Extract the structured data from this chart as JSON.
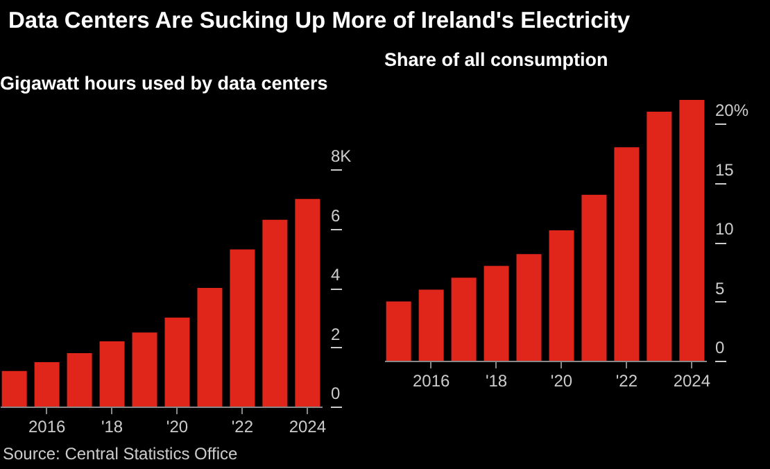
{
  "chart_data": [
    {
      "type": "bar",
      "title": "Data Centers Are Sucking Up More of Ireland's Electricity",
      "subtitle": "Gigawatt hours used by data centers",
      "categories": [
        null,
        "2016",
        null,
        "'18",
        null,
        "'20",
        null,
        "'22",
        null,
        "2024"
      ],
      "values": [
        1.2,
        1.5,
        1.8,
        2.2,
        2.5,
        3.0,
        4.0,
        5.3,
        6.3,
        7.0
      ],
      "color": "#e0251b",
      "ylim": [
        0,
        8
      ],
      "yticks": [
        0,
        2,
        4,
        6,
        {
          "value": 8,
          "label": "8K"
        }
      ],
      "annotations": [
        "Source: Central Statistics Office"
      ]
    },
    {
      "type": "bar",
      "subtitle": "Share of all consumption",
      "categories": [
        null,
        "2016",
        null,
        "'18",
        null,
        "'20",
        null,
        "'22",
        null,
        "2024"
      ],
      "values": [
        5.0,
        6.0,
        7.0,
        8.0,
        9.0,
        11.0,
        14.0,
        18.0,
        21.0,
        22.0
      ],
      "color": "#e0251b",
      "ylim": [
        0,
        22
      ],
      "yticks": [
        0,
        5,
        10,
        15,
        {
          "value": 20,
          "label": "20%"
        }
      ]
    }
  ]
}
